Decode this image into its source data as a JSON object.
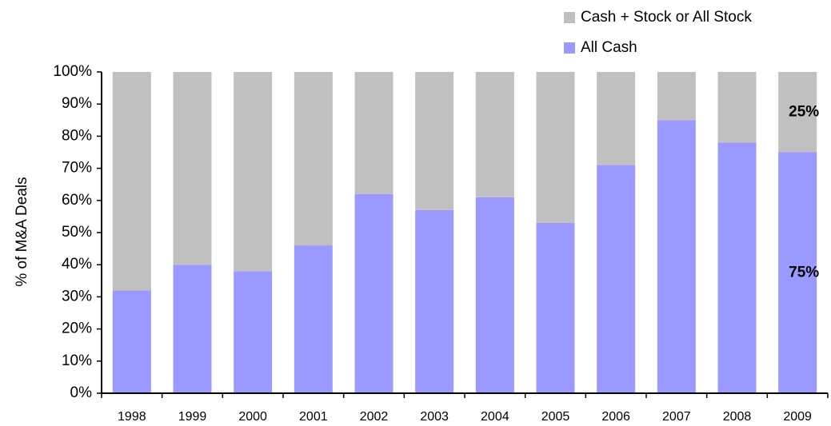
{
  "chart_data": {
    "type": "stacked_bar",
    "y_label": "% of M&A Deals",
    "categories": [
      "1998",
      "1999",
      "2000",
      "2001",
      "2002",
      "2003",
      "2004",
      "2005",
      "2006",
      "2007",
      "2008",
      "2009"
    ],
    "series": [
      {
        "name": "All Cash",
        "color": "#9999ff",
        "values": [
          32,
          40,
          38,
          46,
          62,
          57,
          61,
          53,
          71,
          85,
          78,
          75
        ],
        "value_labels": [
          null,
          null,
          null,
          null,
          null,
          null,
          null,
          null,
          null,
          null,
          null,
          "75%"
        ]
      },
      {
        "name": "Cash + Stock or All Stock",
        "color": "#c0c0c0",
        "values": [
          68,
          60,
          62,
          54,
          38,
          43,
          39,
          47,
          29,
          15,
          22,
          25
        ],
        "value_labels": [
          null,
          null,
          null,
          null,
          null,
          null,
          null,
          null,
          null,
          null,
          null,
          "25%"
        ]
      }
    ],
    "ylim": [
      0,
      100
    ],
    "yticks": [
      {
        "value": 0,
        "label": "0%"
      },
      {
        "value": 10,
        "label": "10%"
      },
      {
        "value": 20,
        "label": "20%"
      },
      {
        "value": 30,
        "label": "30%"
      },
      {
        "value": 40,
        "label": "40%"
      },
      {
        "value": 50,
        "label": "50%"
      },
      {
        "value": 60,
        "label": "60%"
      },
      {
        "value": 70,
        "label": "70%"
      },
      {
        "value": 80,
        "label": "80%"
      },
      {
        "value": 90,
        "label": "90%"
      },
      {
        "value": 100,
        "label": "100%"
      }
    ]
  }
}
